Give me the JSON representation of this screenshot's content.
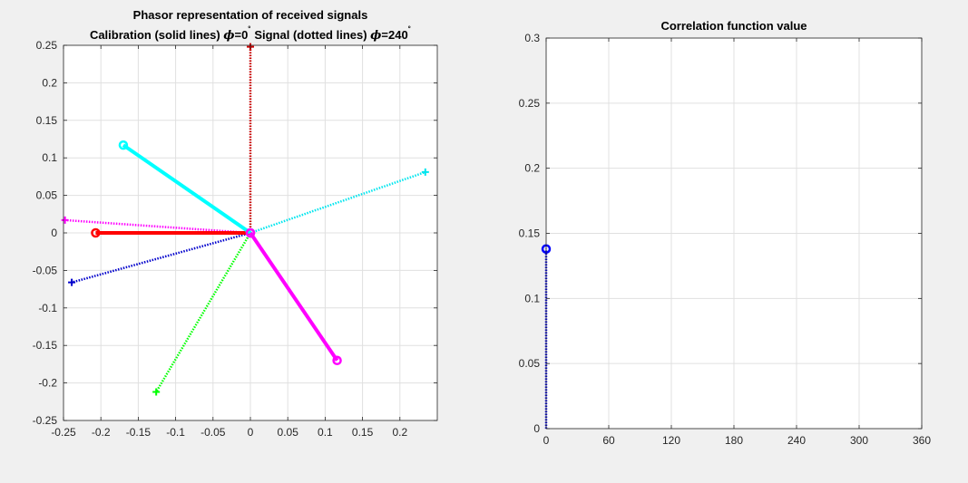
{
  "window": {
    "background": "#f0f0f0"
  },
  "chart_data": [
    {
      "type": "line",
      "title": "Phasor representation of received signals",
      "subtitle_parts": {
        "calib": "Calibration (solid lines) ",
        "phi_sym": "ϕ",
        "calib_val": "=0",
        "deg": "˚",
        "signal": "  Signal (dotted lines) ",
        "signal_val": "=240"
      },
      "xlabel": "",
      "ylabel": "",
      "xlim": [
        -0.25,
        0.25
      ],
      "ylim": [
        -0.25,
        0.25
      ],
      "grid": true,
      "xticks": [
        -0.25,
        -0.2,
        -0.15,
        -0.1,
        -0.05,
        0,
        0.05,
        0.1,
        0.15,
        0.2
      ],
      "xtick_labels": [
        "-0.25",
        "-0.2",
        "-0.15",
        "-0.1",
        "-0.05",
        "0",
        "0.05",
        "0.1",
        "0.15",
        "0.2"
      ],
      "yticks": [
        -0.25,
        -0.2,
        -0.15,
        -0.1,
        -0.05,
        0,
        0.05,
        0.1,
        0.15,
        0.2,
        0.25
      ],
      "ytick_labels": [
        "-0.25",
        "-0.2",
        "-0.15",
        "-0.1",
        "-0.05",
        "0",
        "0.05",
        "0.1",
        "0.15",
        "0.2",
        "0.25"
      ],
      "calibration_phasors": [
        {
          "color": "#ff0000",
          "tip": [
            -0.207,
            0.0
          ]
        },
        {
          "color": "#00ffff",
          "tip": [
            -0.17,
            0.117
          ]
        },
        {
          "color": "#ff00ff",
          "tip": [
            0.116,
            -0.17
          ]
        }
      ],
      "signal_phasors": [
        {
          "color": "#cc0000",
          "tip": [
            0.0,
            0.248
          ]
        },
        {
          "color": "#00e5ee",
          "tip": [
            0.234,
            0.081
          ]
        },
        {
          "color": "#ff00ff",
          "tip": [
            -0.248,
            0.017
          ]
        },
        {
          "color": "#0000cc",
          "tip": [
            -0.239,
            -0.066
          ]
        },
        {
          "color": "#00ff00",
          "tip": [
            -0.126,
            -0.212
          ]
        }
      ]
    },
    {
      "type": "line",
      "title": "Correlation function value",
      "xlabel": "",
      "ylabel": "",
      "xlim": [
        0,
        360
      ],
      "ylim": [
        0,
        0.3
      ],
      "grid": true,
      "xticks": [
        0,
        60,
        120,
        180,
        240,
        300,
        360
      ],
      "xtick_labels": [
        "0",
        "60",
        "120",
        "180",
        "240",
        "300",
        "360"
      ],
      "yticks": [
        0,
        0.05,
        0.1,
        0.15,
        0.2,
        0.25,
        0.3
      ],
      "ytick_labels": [
        "0",
        "0.05",
        "0.1",
        "0.15",
        "0.2",
        "0.25",
        "0.3"
      ],
      "series": [
        {
          "color": "#0000ff",
          "x": [
            0,
            0
          ],
          "y": [
            0,
            0.138
          ]
        }
      ],
      "marker": {
        "x": 0,
        "y": 0.138,
        "color": "#0000ff"
      }
    }
  ]
}
